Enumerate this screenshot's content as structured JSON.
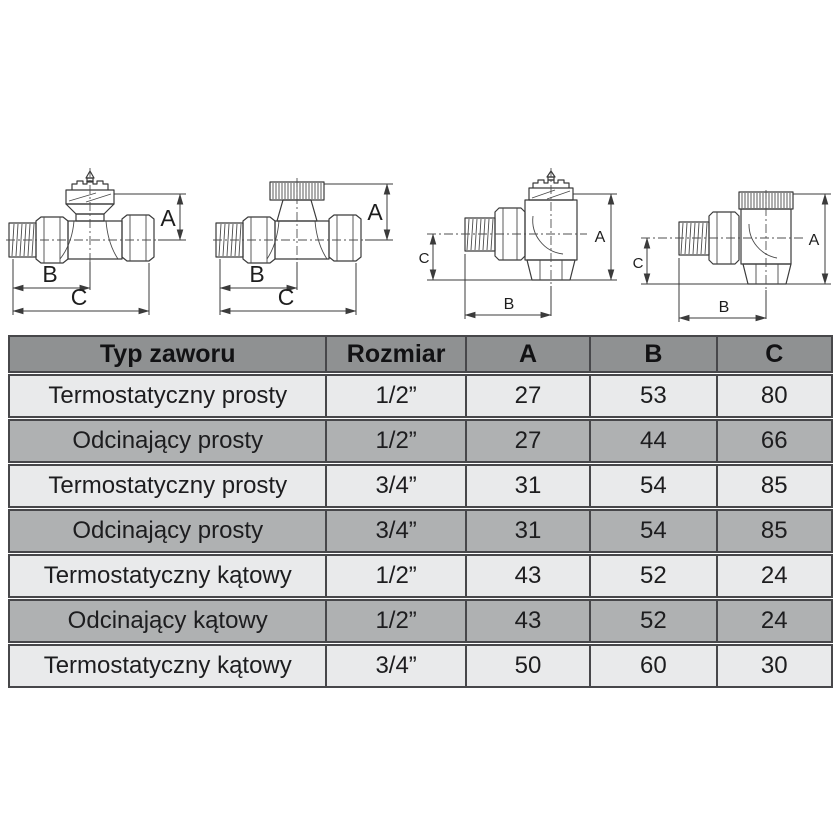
{
  "page": {
    "background": "#ffffff"
  },
  "diagrams": [
    {
      "name": "thermostatic-straight-valve",
      "labels": {
        "a": "A",
        "b": "B",
        "c": "C"
      }
    },
    {
      "name": "shutoff-straight-valve",
      "labels": {
        "a": "A",
        "b": "B",
        "c": "C"
      }
    },
    {
      "name": "thermostatic-angle-valve",
      "labels": {
        "a": "A",
        "b": "B",
        "c": "C"
      }
    },
    {
      "name": "shutoff-angle-valve",
      "labels": {
        "a": "A",
        "b": "B",
        "c": "C"
      }
    }
  ],
  "table": {
    "headers": [
      "Typ zaworu",
      "Rozmiar",
      "A",
      "B",
      "C"
    ],
    "rows": [
      [
        "Termostatyczny prosty",
        "1/2”",
        "27",
        "53",
        "80"
      ],
      [
        "Odcinający prosty",
        "1/2”",
        "27",
        "44",
        "66"
      ],
      [
        "Termostatyczny prosty",
        "3/4”",
        "31",
        "54",
        "85"
      ],
      [
        "Odcinający prosty",
        "3/4”",
        "31",
        "54",
        "85"
      ],
      [
        "Termostatyczny kątowy",
        "1/2”",
        "43",
        "52",
        "24"
      ],
      [
        "Odcinający kątowy",
        "1/2”",
        "43",
        "52",
        "24"
      ],
      [
        "Termostatyczny kątowy",
        "3/4”",
        "50",
        "60",
        "30"
      ]
    ],
    "colors": {
      "header_bg": "#8f9192",
      "row_light": "#e9eaeb",
      "row_dark": "#afb1b2",
      "border": "#47474a",
      "text": "#1d1d1f"
    }
  }
}
